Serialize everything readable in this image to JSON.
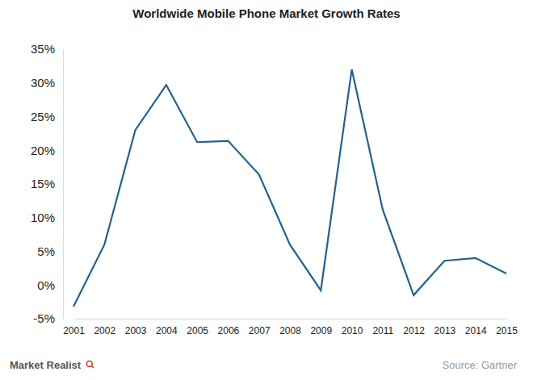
{
  "chart_data": {
    "type": "line",
    "title": "Worldwide Mobile Phone Market Growth Rates",
    "categories": [
      "2001",
      "2002",
      "2003",
      "2004",
      "2005",
      "2006",
      "2007",
      "2008",
      "2009",
      "2010",
      "2011",
      "2012",
      "2013",
      "2014",
      "2015"
    ],
    "values": [
      -3.2,
      6,
      23,
      29.7,
      21.2,
      21.4,
      16.4,
      6,
      -0.8,
      32,
      11.2,
      -1.5,
      3.6,
      4,
      1.7
    ],
    "color": "#24618f",
    "ylim": [
      -5,
      35
    ],
    "yticks": [
      {
        "value": -5,
        "label": "-5%"
      },
      {
        "value": 0,
        "label": "0%"
      },
      {
        "value": 5,
        "label": "5%"
      },
      {
        "value": 10,
        "label": "10%"
      },
      {
        "value": 15,
        "label": "15%"
      },
      {
        "value": 20,
        "label": "20%"
      },
      {
        "value": 25,
        "label": "25%"
      },
      {
        "value": 30,
        "label": "30%"
      },
      {
        "value": 35,
        "label": "35%"
      }
    ],
    "grid": false,
    "annotations": [
      "Source: Gartner",
      "Market Realist"
    ]
  }
}
